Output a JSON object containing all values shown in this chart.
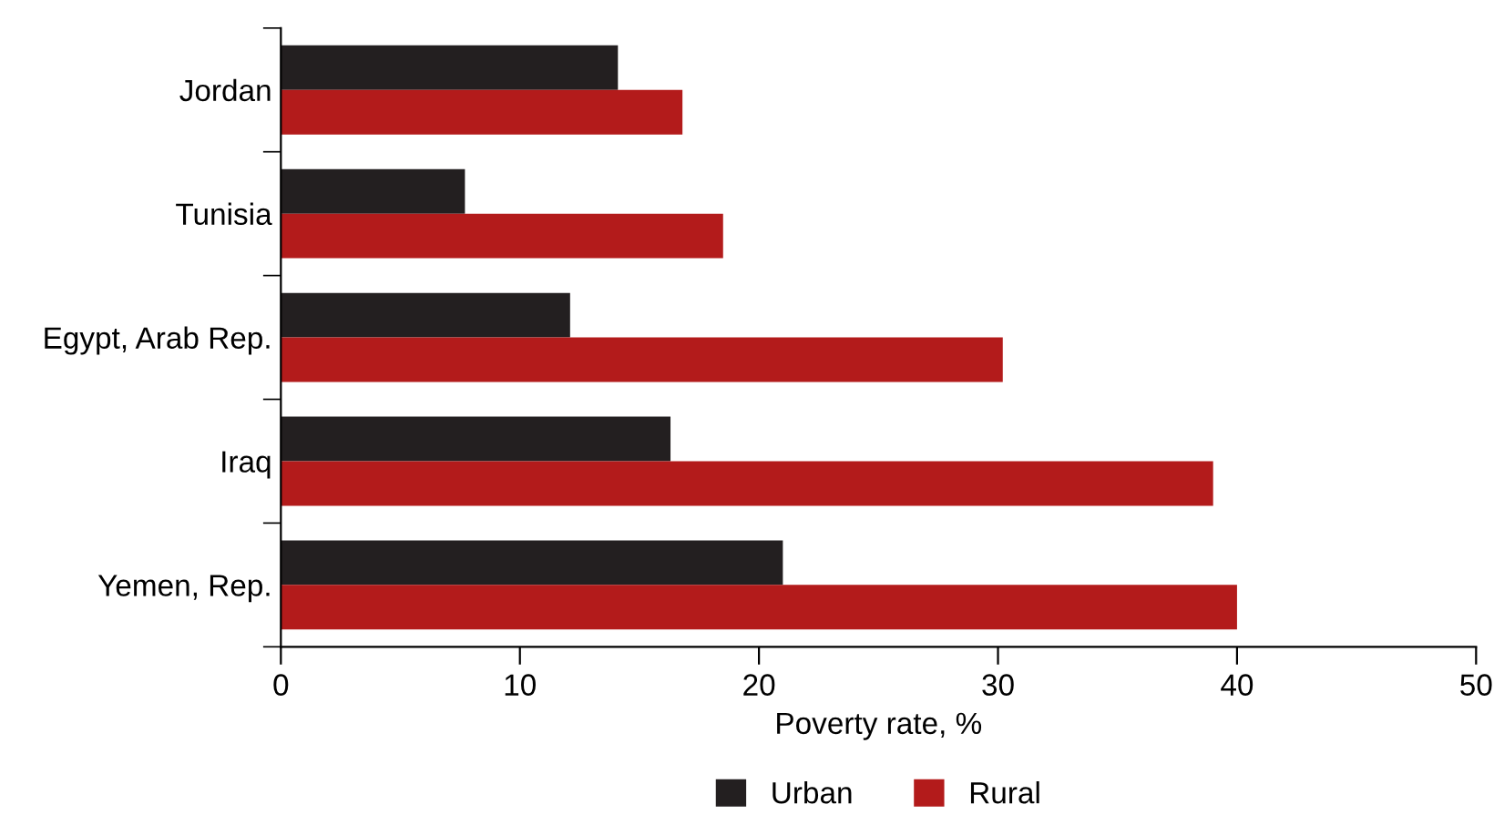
{
  "chart_data": {
    "type": "bar",
    "orientation": "horizontal",
    "categories": [
      "Jordan",
      "Tunisia",
      "Egypt, Arab Rep.",
      "Iraq",
      "Yemen, Rep."
    ],
    "series": [
      {
        "name": "Urban",
        "color": "#231f20",
        "values": [
          14.1,
          7.7,
          12.1,
          16.3,
          21.0
        ]
      },
      {
        "name": "Rural",
        "color": "#b31b1b",
        "values": [
          16.8,
          18.5,
          30.2,
          39.0,
          40.0
        ]
      }
    ],
    "xlabel": "Poverty rate, %",
    "xlim": [
      0,
      50
    ],
    "xticks": [
      0,
      10,
      20,
      30,
      40,
      50
    ],
    "grid": false,
    "legend": "bottom"
  }
}
